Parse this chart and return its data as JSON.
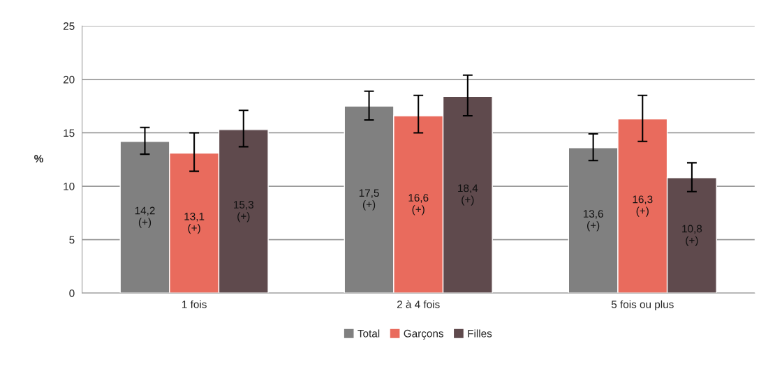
{
  "chart_data": {
    "type": "bar",
    "ylabel": "%",
    "categories": [
      "1 fois",
      "2 à 4 fois",
      "5 fois ou plus"
    ],
    "series": [
      {
        "name": "Total",
        "color": "#808080",
        "values": [
          14.2,
          17.5,
          13.6
        ],
        "errors": [
          [
            13.0,
            15.5
          ],
          [
            16.2,
            18.9
          ],
          [
            12.4,
            14.9
          ]
        ],
        "value_labels": [
          "14,2\n(+)",
          "17,5\n(+)",
          "13,6\n(+)"
        ]
      },
      {
        "name": "Garçons",
        "color": "#e96b5d",
        "values": [
          13.1,
          16.6,
          16.3
        ],
        "errors": [
          [
            11.4,
            15.0
          ],
          [
            15.0,
            18.5
          ],
          [
            14.2,
            18.5
          ]
        ],
        "value_labels": [
          "13,1\n(+)",
          "16,6\n(+)",
          "16,3\n(+)"
        ]
      },
      {
        "name": "Filles",
        "color": "#5f4a4d",
        "values": [
          15.3,
          18.4,
          10.8
        ],
        "errors": [
          [
            13.7,
            17.1
          ],
          [
            16.6,
            20.4
          ],
          [
            9.5,
            12.2
          ]
        ],
        "value_labels": [
          "15,3\n(+)",
          "18,4\n(+)",
          "10,8\n(+)"
        ]
      }
    ],
    "ylim": [
      0,
      25
    ],
    "yticks": [
      0,
      5,
      10,
      15,
      20,
      25
    ],
    "grid": "y",
    "legend": "bottom"
  }
}
